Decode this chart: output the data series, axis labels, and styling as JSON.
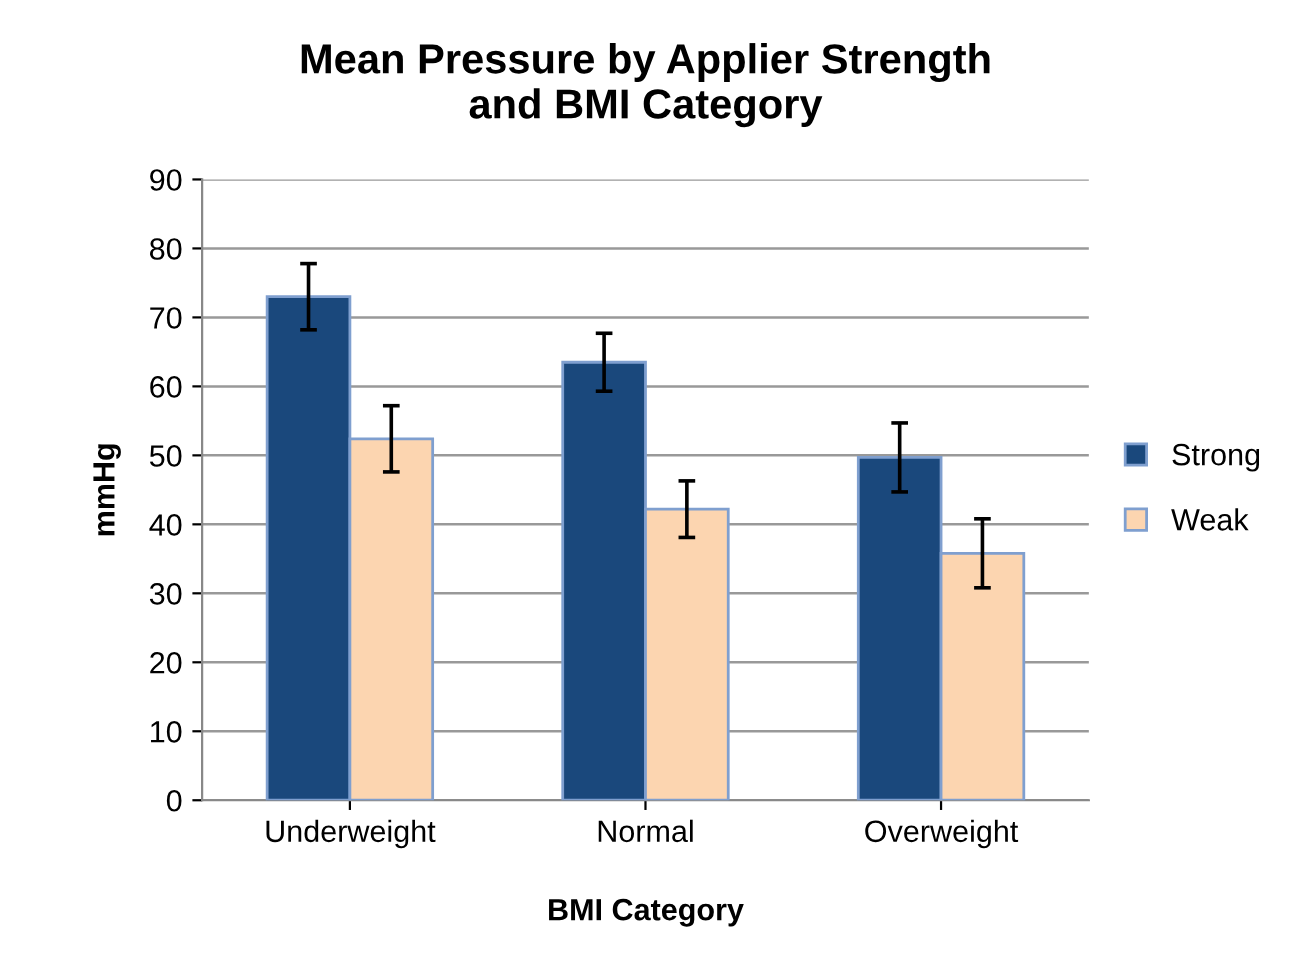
{
  "chart_data": {
    "type": "bar",
    "title": "Mean Pressure by Applier Strength\nand BMI Category",
    "xlabel": "BMI Category",
    "ylabel": "mmHg",
    "categories": [
      "Underweight",
      "Normal",
      "Overweight"
    ],
    "series": [
      {
        "name": "Strong",
        "color": "#1a487c",
        "values": [
          73.0,
          63.5,
          49.7
        ],
        "errors": [
          4.8,
          4.2,
          5.0
        ]
      },
      {
        "name": "Weak",
        "color": "#fcd5b0",
        "values": [
          52.4,
          42.2,
          35.8
        ],
        "errors": [
          4.8,
          4.1,
          5.0
        ]
      }
    ],
    "ylim": [
      0,
      90
    ],
    "yticks": [
      0,
      10,
      20,
      30,
      40,
      50,
      60,
      70,
      80,
      90
    ],
    "grid": "y",
    "legend": "right"
  }
}
